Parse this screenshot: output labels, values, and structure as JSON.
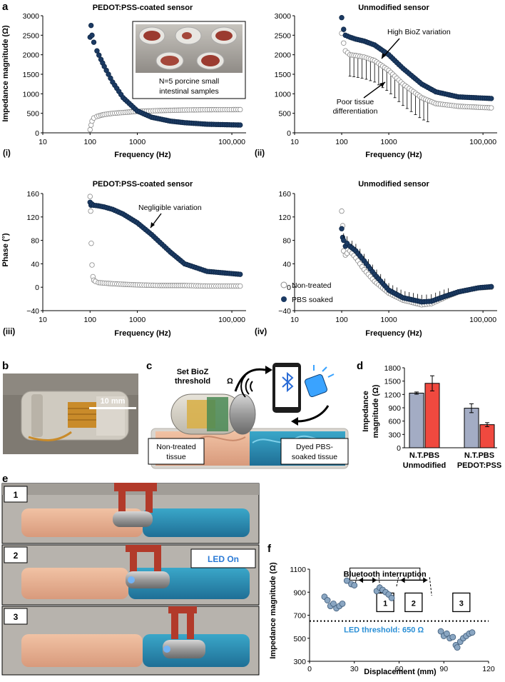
{
  "panel_labels": {
    "a": "a",
    "b": "b",
    "c": "c",
    "d": "d",
    "e": "e",
    "f": "f"
  },
  "colors": {
    "navy": "#1b3a63",
    "navy_edge": "#0f2745",
    "open_edge": "#8a8a8a",
    "bar_gray": "#a3acc4",
    "bar_red": "#f0493f",
    "steel": "#8aa6c2"
  },
  "panel_a": {
    "legend": {
      "open": "Non-treated",
      "filled": "PBS soaked"
    },
    "subplots": [
      {
        "id": "i",
        "roman": "(i)",
        "title": "PEDOT:PSS-coated sensor",
        "ylabel": "Impedance magnitude (Ω)",
        "xlabel": "Frequency (Hz)",
        "yticks": [
          "0",
          "500",
          "1000",
          "1500",
          "2000",
          "2500",
          "3000"
        ],
        "xticks": [
          "10",
          "100",
          "1000",
          "100,000"
        ],
        "inset_caption_line1": "N=5 porcine small",
        "inset_caption_line2": "intestinal samples"
      },
      {
        "id": "ii",
        "roman": "(ii)",
        "title": "Unmodified sensor",
        "xlabel": "Frequency (Hz)",
        "yticks": [
          "0",
          "500",
          "1000",
          "1500",
          "2000",
          "2500",
          "3000"
        ],
        "xticks": [
          "10",
          "100",
          "1000",
          "100,000"
        ],
        "annotation1": "High BioZ variation",
        "annotation2_line1": "Poor tissue",
        "annotation2_line2": "differentiation"
      },
      {
        "id": "iii",
        "roman": "(iii)",
        "title": "PEDOT:PSS-coated sensor",
        "ylabel": "Phase (°)",
        "xlabel": "Frequency (Hz)",
        "yticks": [
          "−40",
          "0",
          "40",
          "80",
          "120",
          "160"
        ],
        "xticks": [
          "10",
          "100",
          "1000",
          "100,000"
        ],
        "annotation": "Negligible variation"
      },
      {
        "id": "iv",
        "roman": "(iv)",
        "title": "Unmodified sensor",
        "xlabel": "Frequency (Hz)",
        "yticks": [
          "−40",
          "0",
          "40",
          "80",
          "120",
          "160"
        ],
        "xticks": [
          "10",
          "100",
          "1000",
          "100,000"
        ]
      }
    ]
  },
  "panel_b": {
    "scale_bar": "10 mm"
  },
  "panel_c": {
    "threshold_line1": "Set BioZ",
    "threshold_line2": "threshold",
    "omega": "Ω",
    "left_tissue_line1": "Non-treated",
    "left_tissue_line2": "tissue",
    "right_tissue_line1": "Dyed PBS-",
    "right_tissue_line2": "soaked tissue"
  },
  "panel_e": {
    "frames": [
      "1",
      "2",
      "3"
    ],
    "led_on": "LED On"
  },
  "chart_data": [
    {
      "id": "a-i",
      "type": "scatter",
      "title": "PEDOT:PSS-coated sensor",
      "xlabel": "Frequency (Hz)",
      "ylabel": "Impedance magnitude (Ω)",
      "xscale": "log",
      "xlim": [
        10,
        200000
      ],
      "ylim": [
        0,
        3000
      ],
      "series": [
        {
          "name": "Non-treated",
          "x": [
            100,
            105,
            110,
            120,
            140,
            170,
            200,
            300,
            500,
            1000,
            3000,
            10000,
            30000,
            150000
          ],
          "y": [
            80,
            200,
            300,
            380,
            420,
            450,
            470,
            500,
            520,
            550,
            570,
            585,
            592,
            595
          ]
        },
        {
          "name": "PBS soaked",
          "x": [
            100,
            105,
            110,
            120,
            140,
            170,
            200,
            300,
            500,
            1000,
            2000,
            5000,
            10000,
            30000,
            150000
          ],
          "y": [
            2450,
            2750,
            2500,
            2320,
            2100,
            1880,
            1700,
            1300,
            900,
            560,
            400,
            300,
            260,
            220,
            200
          ]
        }
      ]
    },
    {
      "id": "a-ii",
      "type": "scatter",
      "title": "Unmodified sensor",
      "xlabel": "Frequency (Hz)",
      "xscale": "log",
      "xlim": [
        10,
        200000
      ],
      "ylim": [
        0,
        3000
      ],
      "series": [
        {
          "name": "Non-treated",
          "x": [
            100,
            110,
            120,
            150,
            200,
            300,
            500,
            1000,
            2000,
            5000,
            10000,
            30000,
            150000
          ],
          "y": [
            2550,
            2300,
            2100,
            2000,
            1980,
            1940,
            1850,
            1600,
            1250,
            900,
            750,
            680,
            640
          ]
        },
        {
          "name": "PBS soaked",
          "x": [
            100,
            110,
            120,
            150,
            200,
            300,
            500,
            1000,
            2000,
            5000,
            10000,
            30000,
            150000
          ],
          "y": [
            2950,
            2650,
            2500,
            2450,
            2400,
            2350,
            2250,
            2000,
            1650,
            1250,
            1050,
            920,
            880
          ]
        }
      ]
    },
    {
      "id": "a-iii",
      "type": "scatter",
      "title": "PEDOT:PSS-coated sensor",
      "xlabel": "Frequency (Hz)",
      "ylabel": "Phase (°)",
      "xscale": "log",
      "xlim": [
        10,
        200000
      ],
      "ylim": [
        -40,
        160
      ],
      "series": [
        {
          "name": "Non-treated",
          "x": [
            100,
            103,
            106,
            110,
            115,
            120,
            130,
            150,
            200,
            300,
            500,
            1000,
            3000,
            10000,
            30000,
            150000
          ],
          "y": [
            155,
            130,
            75,
            38,
            18,
            12,
            10,
            8,
            7,
            6,
            5,
            4,
            3,
            3,
            2,
            2
          ]
        },
        {
          "name": "PBS soaked",
          "x": [
            100,
            105,
            110,
            120,
            150,
            200,
            300,
            500,
            1000,
            2000,
            5000,
            10000,
            30000,
            150000
          ],
          "y": [
            145,
            140,
            142,
            140,
            139,
            137,
            133,
            125,
            110,
            90,
            60,
            40,
            27,
            22
          ]
        }
      ]
    },
    {
      "id": "a-iv",
      "type": "scatter",
      "title": "Unmodified sensor",
      "xlabel": "Frequency (Hz)",
      "xscale": "log",
      "xlim": [
        10,
        200000
      ],
      "ylim": [
        -40,
        160
      ],
      "series": [
        {
          "name": "Non-treated",
          "x": [
            100,
            105,
            110,
            120,
            130,
            150,
            200,
            300,
            500,
            1000,
            2000,
            5000,
            8000,
            15000,
            30000,
            80000,
            150000
          ],
          "y": [
            130,
            105,
            62,
            55,
            58,
            62,
            50,
            30,
            10,
            -10,
            -22,
            -30,
            -28,
            -18,
            -8,
            -1,
            0
          ]
        },
        {
          "name": "PBS soaked",
          "x": [
            100,
            105,
            110,
            120,
            130,
            150,
            200,
            300,
            500,
            1000,
            2000,
            5000,
            8000,
            15000,
            30000,
            80000,
            150000
          ],
          "y": [
            100,
            85,
            80,
            70,
            75,
            70,
            62,
            45,
            22,
            -5,
            -18,
            -25,
            -24,
            -16,
            -8,
            -1,
            1
          ]
        }
      ]
    },
    {
      "id": "d",
      "type": "bar",
      "ylabel": "Impedance magnitude (Ω)",
      "ylim": [
        0,
        1800
      ],
      "yticks": [
        "0",
        "300",
        "600",
        "900",
        "1200",
        "1500",
        "1800"
      ],
      "groups": [
        "Unmodified",
        "PEDOT:PSS"
      ],
      "group_tick": "N.T.PBS",
      "series": [
        {
          "name": "N.T.",
          "values": [
            1230,
            890
          ],
          "errors": [
            25,
            100
          ]
        },
        {
          "name": "PBS",
          "values": [
            1450,
            520
          ],
          "errors": [
            170,
            45
          ]
        }
      ]
    },
    {
      "id": "f",
      "type": "scatter",
      "xlabel": "Displacement (mm)",
      "ylabel": "Impedance magnitude (Ω)",
      "xlim": [
        0,
        120
      ],
      "ylim": [
        300,
        1100
      ],
      "xticks": [
        "0",
        "30",
        "60",
        "90",
        "120"
      ],
      "yticks": [
        "300",
        "500",
        "700",
        "900",
        "1100"
      ],
      "threshold": 650,
      "threshold_label": "LED threshold: 650 Ω",
      "interruption_label": "Bluetooth interruption",
      "region_labels": [
        "1",
        "2",
        "3"
      ],
      "x": [
        10,
        12,
        14,
        16,
        18,
        20,
        22,
        25,
        28,
        30,
        45,
        47,
        49,
        51,
        53,
        55,
        88,
        90,
        92,
        94,
        96,
        98,
        99,
        101,
        103,
        105,
        107,
        109
      ],
      "y": [
        860,
        830,
        780,
        800,
        760,
        780,
        800,
        1000,
        970,
        960,
        910,
        940,
        920,
        900,
        880,
        850,
        560,
        520,
        540,
        500,
        510,
        440,
        420,
        470,
        500,
        520,
        540,
        550
      ]
    }
  ]
}
